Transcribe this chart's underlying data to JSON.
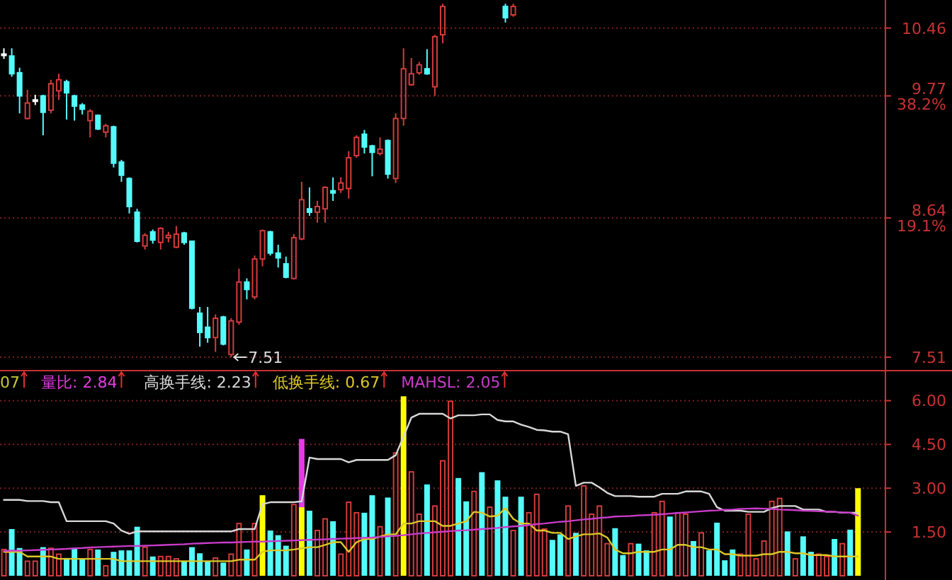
{
  "chart_data": [
    {
      "type": "candlestick",
      "log": "y",
      "grid": "y",
      "tick_labels": "y",
      "ylim": [
        7.51,
        10.76
      ],
      "yticks": [
        10.46,
        {
          "value": 9.77,
          "label": "9.77\n38.2%"
        },
        {
          "value": 8.64,
          "label": "8.64\n19.1%"
        },
        7.51
      ],
      "annotations": [
        "7.51"
      ],
      "categories": [
        null,
        null,
        null,
        null,
        null,
        null,
        null,
        null,
        null,
        null,
        null,
        null,
        null,
        null,
        null,
        null,
        null,
        null,
        null,
        null,
        null,
        null,
        null,
        null,
        null,
        null,
        null,
        null,
        null,
        null,
        null,
        null,
        null,
        null,
        null,
        null,
        null,
        null,
        null,
        null,
        null,
        null,
        null,
        null,
        null,
        null,
        null,
        null,
        null,
        null,
        null,
        null,
        null,
        null,
        null,
        null,
        null,
        null,
        null,
        null,
        null,
        null,
        null,
        null,
        null,
        null,
        null,
        null,
        null,
        null,
        null,
        null,
        null,
        null,
        null,
        null,
        null,
        null,
        null,
        null,
        null,
        null,
        null,
        null,
        null,
        null,
        null,
        null,
        null,
        null,
        null,
        null,
        null,
        null,
        null,
        null,
        null,
        null,
        null,
        null,
        null,
        null,
        null,
        null,
        null,
        null,
        null,
        null,
        null,
        null
      ],
      "ohlc": [
        [
          10.19,
          10.25,
          10.14,
          10.19
        ],
        [
          10.17,
          10.25,
          9.96,
          9.99
        ],
        [
          10.0,
          10.05,
          9.6,
          9.77
        ],
        [
          9.55,
          9.83,
          9.54,
          9.7
        ],
        [
          9.73,
          9.78,
          9.68,
          9.73
        ],
        [
          9.77,
          9.78,
          9.39,
          9.61
        ],
        [
          9.63,
          9.93,
          9.6,
          9.89
        ],
        [
          9.82,
          9.99,
          9.73,
          9.93
        ],
        [
          9.91,
          9.93,
          9.54,
          9.8
        ],
        [
          9.77,
          9.78,
          9.53,
          9.67
        ],
        [
          9.68,
          9.7,
          9.59,
          9.64
        ],
        [
          9.53,
          9.64,
          9.37,
          9.62
        ],
        [
          9.58,
          9.59,
          9.44,
          9.45
        ],
        [
          9.42,
          9.5,
          9.37,
          9.48
        ],
        [
          9.47,
          9.48,
          9.09,
          9.13
        ],
        [
          9.14,
          9.16,
          8.96,
          9.02
        ],
        [
          8.99,
          9.0,
          8.68,
          8.74
        ],
        [
          8.69,
          8.72,
          8.43,
          8.44
        ],
        [
          8.4,
          8.51,
          8.37,
          8.49
        ],
        [
          8.52,
          8.54,
          8.42,
          8.45
        ],
        [
          8.43,
          8.56,
          8.37,
          8.55
        ],
        [
          8.47,
          8.52,
          8.43,
          8.49
        ],
        [
          8.39,
          8.57,
          8.38,
          8.5
        ],
        [
          8.51,
          8.52,
          8.41,
          8.43
        ],
        [
          8.44,
          8.44,
          7.88,
          7.89
        ],
        [
          7.85,
          7.9,
          7.59,
          7.7
        ],
        [
          7.74,
          7.9,
          7.62,
          7.66
        ],
        [
          7.66,
          7.84,
          7.55,
          7.81
        ],
        [
          7.82,
          7.83,
          7.6,
          7.61
        ],
        [
          7.53,
          7.81,
          7.51,
          7.79
        ],
        [
          7.78,
          8.21,
          7.76,
          8.1
        ],
        [
          8.1,
          8.13,
          7.96,
          8.04
        ],
        [
          7.98,
          8.32,
          7.96,
          8.29
        ],
        [
          8.29,
          8.54,
          8.23,
          8.53
        ],
        [
          8.52,
          8.53,
          8.32,
          8.34
        ],
        [
          8.34,
          8.41,
          8.22,
          8.3
        ],
        [
          8.25,
          8.31,
          8.13,
          8.14
        ],
        [
          8.13,
          8.5,
          8.12,
          8.47
        ],
        [
          8.46,
          8.96,
          8.45,
          8.8
        ],
        [
          8.72,
          8.91,
          8.66,
          8.69
        ],
        [
          8.69,
          8.79,
          8.6,
          8.74
        ],
        [
          8.72,
          8.92,
          8.6,
          8.91
        ],
        [
          8.88,
          9.0,
          8.79,
          8.86
        ],
        [
          8.89,
          9.0,
          8.86,
          8.95
        ],
        [
          8.9,
          9.24,
          8.81,
          9.18
        ],
        [
          9.2,
          9.39,
          9.18,
          9.37
        ],
        [
          9.4,
          9.44,
          9.22,
          9.28
        ],
        [
          9.29,
          9.3,
          9.01,
          9.23
        ],
        [
          9.22,
          9.37,
          9.2,
          9.26
        ],
        [
          9.34,
          9.35,
          8.99,
          9.03
        ],
        [
          8.99,
          9.6,
          8.95,
          9.55
        ],
        [
          9.55,
          10.25,
          9.48,
          10.04
        ],
        [
          9.88,
          10.15,
          9.87,
          9.99
        ],
        [
          10.0,
          10.11,
          9.98,
          10.08
        ],
        [
          10.04,
          10.24,
          9.98,
          9.99
        ],
        [
          9.86,
          10.39,
          9.77,
          10.37
        ],
        [
          10.39,
          10.72,
          10.3,
          10.69
        ],
        null,
        null,
        null,
        null,
        null,
        null,
        null,
        [
          10.69,
          10.72,
          10.52,
          10.57
        ],
        [
          10.6,
          10.72,
          10.58,
          10.69
        ],
        null,
        null,
        null,
        null,
        null,
        null,
        null,
        null,
        null,
        null,
        null,
        null,
        null,
        null,
        null,
        null,
        null,
        null,
        null,
        null,
        null,
        null,
        null,
        null,
        null,
        null,
        null,
        null,
        null,
        null,
        null,
        null,
        null,
        null,
        null,
        null,
        null,
        null,
        null,
        null,
        null,
        null,
        null,
        null
      ],
      "colors": [
        "#ffffff",
        "#54fcfc",
        "#54fcfc",
        "#d23c3c",
        "#ffffff",
        "#54fcfc",
        "#d23c3c",
        "#d23c3c",
        "#54fcfc",
        "#54fcfc",
        "#54fcfc",
        "#d23c3c",
        "#54fcfc",
        "#d23c3c",
        "#54fcfc",
        "#54fcfc",
        "#54fcfc",
        "#54fcfc",
        "#d23c3c",
        "#54fcfc",
        "#d23c3c",
        "#d23c3c",
        "#d23c3c",
        "#54fcfc",
        "#54fcfc",
        "#54fcfc",
        "#54fcfc",
        "#d23c3c",
        "#54fcfc",
        "#d23c3c",
        "#d23c3c",
        "#54fcfc",
        "#d23c3c",
        "#d23c3c",
        "#54fcfc",
        "#54fcfc",
        "#54fcfc",
        "#d23c3c",
        "#d23c3c",
        "#54fcfc",
        "#d23c3c",
        "#d23c3c",
        "#54fcfc",
        "#d23c3c",
        "#d23c3c",
        "#d23c3c",
        "#54fcfc",
        "#54fcfc",
        "#d23c3c",
        "#54fcfc",
        "#d23c3c",
        "#d23c3c",
        "#d23c3c",
        "#d23c3c",
        "#54fcfc",
        "#d23c3c",
        "#d23c3c",
        null,
        null,
        null,
        null,
        null,
        null,
        null,
        "#54fcfc",
        "#d23c3c",
        null,
        null,
        null,
        null,
        null,
        null,
        null,
        null,
        null,
        null,
        null,
        null,
        null,
        null,
        null,
        null,
        null,
        null,
        null,
        null,
        null,
        null,
        null,
        null,
        null,
        null,
        null,
        null,
        null,
        null,
        null,
        null,
        null,
        null,
        null,
        null,
        null,
        null,
        null,
        null,
        null,
        null,
        null,
        null
      ]
    },
    {
      "type": "bar",
      "stacked": true,
      "grid": "y",
      "tick_labels": "y",
      "legend": "top left",
      "ylim": [
        0,
        7.03
      ],
      "yticks": [
        {
          "value": 6,
          "label": "6.00"
        },
        {
          "value": 4.5,
          "label": "4.50"
        },
        {
          "value": 3,
          "label": "3.00"
        },
        {
          "value": 1.5,
          "label": "1.50"
        }
      ],
      "annotations": [
        "07",
        "量比: 2.84"
      ],
      "categories": [
        null,
        null,
        null,
        null,
        null,
        null,
        null,
        null,
        null,
        null,
        null,
        null,
        null,
        null,
        null,
        null,
        null,
        null,
        null,
        null,
        null,
        null,
        null,
        null,
        null,
        null,
        null,
        null,
        null,
        null,
        null,
        null,
        null,
        null,
        null,
        null,
        null,
        null,
        null,
        null,
        null,
        null,
        null,
        null,
        null,
        null,
        null,
        null,
        null,
        null,
        null,
        null,
        null,
        null,
        null,
        null,
        null,
        null,
        null,
        null,
        null,
        null,
        null,
        null,
        null,
        null,
        null,
        null,
        null,
        null,
        null,
        null,
        null,
        null,
        null,
        null,
        null,
        null,
        null,
        null,
        null,
        null,
        null,
        null,
        null,
        null,
        null,
        null,
        null,
        null,
        null,
        null,
        null,
        null,
        null,
        null,
        null,
        null,
        null,
        null,
        null,
        null,
        null,
        null,
        null,
        null,
        null,
        null,
        null,
        null
      ],
      "series": [
        {
          "type": "bar",
          "color": "#d23c3c",
          "values": [
            0.9,
            1.6,
            0.95,
            0.5,
            0.5,
            0.98,
            0.94,
            0.74,
            0.61,
            0.95,
            0.58,
            0.9,
            0.9,
            0.34,
            0.82,
            0.87,
            0.87,
            1.68,
            0.98,
            0.66,
            0.66,
            0.66,
            0.58,
            0.5,
            0.98,
            0.77,
            0.5,
            0.61,
            0.45,
            0.74,
            1.79,
            0.9,
            1.79,
            2.76,
            1.55,
            1.39,
            1.03,
            2.44,
            2.35,
            2.23,
            1.55,
            1.95,
            1.87,
            0.74,
            2.52,
            2.16,
            2.16,
            2.76,
            1.68,
            2.68,
            4.21,
            6.15,
            3.56,
            2.11,
            3.13,
            2.39,
            3.94,
            5.98,
            3.35,
            2.55,
            2.89,
            3.55,
            2.35,
            3.27,
            2.71,
            1.55,
            2.71,
            2.16,
            2.79,
            1.6,
            1.23,
            1.42,
            2.39,
            1.47,
            3.08,
            2.11,
            2.39,
            1.1,
            1.63,
            0.71,
            1.1,
            1.1,
            0.87,
            2.16,
            2.55,
            2.03,
            2.16,
            2.11,
            1.19,
            1.47,
            0.87,
            1.82,
            0.53,
            0.9,
            0.74,
            2.11,
            0.58,
            1.19,
            2.55,
            2.65,
            1.52,
            0.58,
            1.35,
            0.82,
            0.74,
            0.66,
            1.26,
            1.1,
            1.58,
            3.0
          ],
          "colors": [
            "#d23c3c",
            "#54fcfc",
            "#54fcfc",
            "#d23c3c",
            "#d23c3c",
            "#54fcfc",
            "#d23c3c",
            "#d23c3c",
            "#54fcfc",
            "#54fcfc",
            "#54fcfc",
            "#d23c3c",
            "#54fcfc",
            "#d23c3c",
            "#54fcfc",
            "#54fcfc",
            "#54fcfc",
            "#54fcfc",
            "#d23c3c",
            "#54fcfc",
            "#d23c3c",
            "#d23c3c",
            "#d23c3c",
            "#54fcfc",
            "#54fcfc",
            "#54fcfc",
            "#54fcfc",
            "#d23c3c",
            "#54fcfc",
            "#d23c3c",
            "#d23c3c",
            "#54fcfc",
            "#d23c3c",
            "#ffff00",
            "#54fcfc",
            "#54fcfc",
            "#54fcfc",
            "#d23c3c",
            "#ffff00",
            "#54fcfc",
            "#d23c3c",
            "#d23c3c",
            "#54fcfc",
            "#d23c3c",
            "#d23c3c",
            "#d23c3c",
            "#54fcfc",
            "#54fcfc",
            "#d23c3c",
            "#54fcfc",
            "#d23c3c",
            "#ffff00",
            "#d23c3c",
            "#d23c3c",
            "#54fcfc",
            "#d23c3c",
            "#d23c3c",
            "#d23c3c",
            "#54fcfc",
            "#54fcfc",
            "#d23c3c",
            "#54fcfc",
            "#d23c3c",
            "#54fcfc",
            "#54fcfc",
            "#d23c3c",
            "#54fcfc",
            "#d23c3c",
            "#d23c3c",
            "#d23c3c",
            "#54fcfc",
            "#54fcfc",
            "#d23c3c",
            "#54fcfc",
            "#d23c3c",
            "#d23c3c",
            "#d23c3c",
            "#d23c3c",
            "#54fcfc",
            "#54fcfc",
            "#d23c3c",
            "#54fcfc",
            "#54fcfc",
            "#d23c3c",
            "#d23c3c",
            "#54fcfc",
            "#d23c3c",
            "#d23c3c",
            "#54fcfc",
            "#d23c3c",
            "#54fcfc",
            "#54fcfc",
            "#54fcfc",
            "#54fcfc",
            "#d23c3c",
            "#d23c3c",
            "#d23c3c",
            "#d23c3c",
            "#d23c3c",
            "#d23c3c",
            "#54fcfc",
            "#d23c3c",
            "#54fcfc",
            "#54fcfc",
            "#d23c3c",
            "#d23c3c",
            "#54fcfc",
            "#d23c3c",
            "#54fcfc",
            "#ffff00"
          ]
        },
        {
          "type": "bar",
          "color": "#e43ce4",
          "values": [
            null,
            null,
            null,
            null,
            null,
            null,
            null,
            null,
            null,
            null,
            null,
            null,
            null,
            null,
            null,
            null,
            null,
            null,
            null,
            null,
            null,
            null,
            null,
            null,
            null,
            null,
            null,
            null,
            null,
            null,
            null,
            null,
            null,
            null,
            null,
            null,
            null,
            null,
            2.34,
            null,
            null,
            null,
            null,
            null,
            null,
            null,
            null,
            null,
            null,
            null,
            null,
            null,
            null,
            null,
            null,
            null,
            null,
            null,
            null,
            null,
            null,
            null,
            null,
            null,
            null,
            null,
            null,
            null,
            null,
            null,
            null,
            null,
            null,
            null,
            null,
            null,
            null,
            null,
            null,
            null,
            null,
            null,
            null,
            null,
            null,
            null,
            null,
            null,
            null,
            null,
            null,
            null,
            null,
            null,
            null,
            null,
            null,
            null,
            null,
            null,
            null,
            null,
            null,
            null,
            null,
            null,
            null,
            null,
            null,
            null
          ]
        },
        {
          "type": "line",
          "name": "高换手线: 2.23",
          "color": "#d8d8d8",
          "values": [
            2.6,
            2.6,
            2.6,
            2.56,
            2.56,
            2.56,
            2.52,
            2.52,
            1.87,
            1.87,
            1.87,
            1.87,
            1.87,
            1.87,
            1.79,
            1.55,
            1.44,
            1.52,
            1.52,
            1.52,
            1.52,
            1.52,
            1.52,
            1.52,
            1.52,
            1.52,
            1.52,
            1.52,
            1.52,
            1.52,
            1.6,
            1.6,
            1.6,
            2.45,
            2.52,
            2.52,
            2.52,
            2.52,
            2.55,
            4.05,
            4.0,
            4.0,
            4.0,
            4.0,
            3.89,
            3.97,
            3.97,
            3.97,
            3.97,
            3.97,
            4.13,
            4.77,
            5.42,
            5.55,
            5.55,
            5.55,
            5.55,
            5.39,
            5.5,
            5.5,
            5.5,
            5.53,
            5.53,
            5.34,
            5.29,
            5.29,
            5.18,
            5.1,
            5.0,
            4.98,
            4.94,
            4.94,
            4.85,
            3.08,
            3.19,
            3.19,
            3.03,
            2.84,
            2.73,
            2.73,
            2.73,
            2.71,
            2.71,
            2.71,
            2.81,
            2.81,
            2.81,
            2.89,
            2.89,
            2.89,
            2.81,
            2.35,
            2.23,
            2.23,
            2.23,
            2.19,
            2.19,
            2.19,
            2.32,
            2.39,
            2.39,
            2.39,
            2.27,
            2.27,
            2.27,
            2.19,
            2.19,
            2.16,
            2.16,
            2.16
          ]
        },
        {
          "type": "line",
          "name": "低换手线: 0.67",
          "color": "#dcc828",
          "values": [
            0.82,
            0.82,
            0.82,
            0.66,
            0.66,
            0.66,
            0.66,
            0.58,
            0.58,
            0.58,
            0.58,
            0.58,
            0.58,
            0.58,
            0.58,
            0.5,
            0.5,
            0.5,
            0.5,
            0.5,
            0.5,
            0.5,
            0.5,
            0.5,
            0.5,
            0.5,
            0.5,
            0.5,
            0.5,
            0.5,
            0.55,
            0.55,
            0.55,
            0.82,
            0.87,
            0.87,
            0.87,
            0.9,
            0.94,
            0.98,
            0.98,
            1.06,
            1.15,
            1.15,
            0.82,
            1.15,
            1.26,
            1.26,
            1.34,
            1.42,
            1.42,
            1.79,
            1.79,
            1.87,
            1.87,
            1.87,
            1.71,
            1.71,
            1.79,
            1.87,
            2.19,
            2.16,
            2.03,
            2.06,
            2.32,
            1.95,
            1.79,
            1.79,
            1.55,
            1.55,
            1.47,
            1.47,
            1.26,
            1.35,
            1.42,
            1.42,
            1.45,
            1.31,
            0.9,
            0.77,
            0.77,
            0.82,
            0.82,
            0.82,
            0.9,
            0.9,
            1.06,
            1.06,
            0.98,
            0.98,
            0.9,
            0.9,
            0.74,
            0.74,
            0.69,
            0.69,
            0.69,
            0.74,
            0.74,
            0.82,
            0.82,
            0.77,
            0.77,
            0.71,
            0.71,
            0.71,
            0.66,
            0.66,
            0.66,
            0.66
          ]
        },
        {
          "type": "line",
          "name": "MAHSL: 2.05",
          "color": "#c83cc8",
          "values": [
            0.85,
            0.86,
            0.86,
            0.87,
            0.88,
            0.89,
            0.9,
            0.91,
            0.92,
            0.94,
            0.95,
            0.97,
            0.98,
            0.99,
            1.0,
            1.01,
            1.02,
            1.02,
            1.03,
            1.04,
            1.05,
            1.06,
            1.07,
            1.08,
            1.1,
            1.11,
            1.12,
            1.13,
            1.14,
            1.14,
            1.15,
            1.16,
            1.17,
            1.17,
            1.18,
            1.19,
            1.2,
            1.21,
            1.22,
            1.23,
            1.24,
            1.25,
            1.26,
            1.27,
            1.28,
            1.29,
            1.3,
            1.31,
            1.33,
            1.35,
            1.37,
            1.39,
            1.42,
            1.45,
            1.47,
            1.49,
            1.51,
            1.53,
            1.55,
            1.56,
            1.58,
            1.6,
            1.62,
            1.64,
            1.67,
            1.69,
            1.71,
            1.74,
            1.77,
            1.79,
            1.82,
            1.85,
            1.87,
            1.9,
            1.93,
            1.95,
            1.98,
            2.0,
            2.03,
            2.04,
            2.05,
            2.07,
            2.08,
            2.09,
            2.11,
            2.13,
            2.15,
            2.17,
            2.19,
            2.21,
            2.23,
            2.24,
            2.26,
            2.27,
            2.29,
            2.3,
            2.31,
            2.3,
            2.29,
            2.27,
            2.26,
            2.25,
            2.23,
            2.22,
            2.21,
            2.2,
            2.19,
            2.17,
            2.16,
            2.06
          ]
        }
      ]
    }
  ]
}
